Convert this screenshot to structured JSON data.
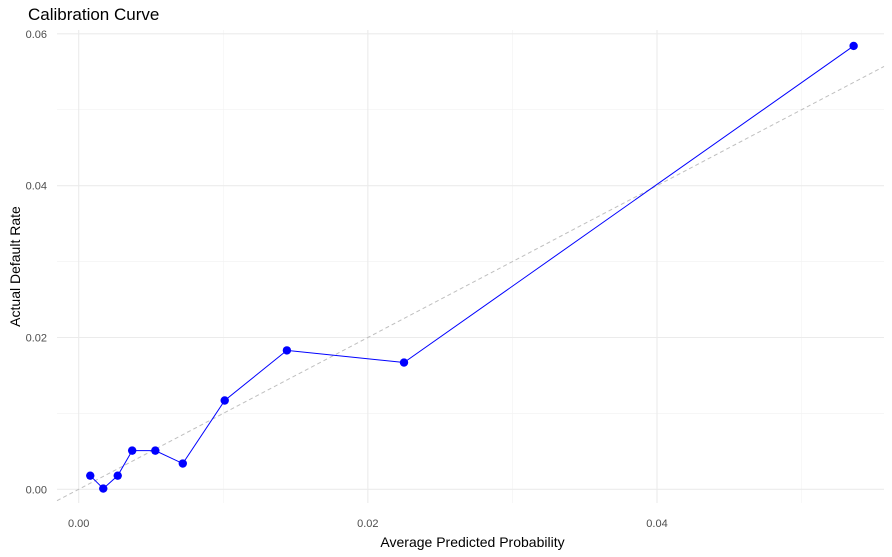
{
  "chart_data": {
    "type": "line",
    "title": "Calibration Curve",
    "xlabel": "Average Predicted Probability",
    "ylabel": "Actual Default Rate",
    "xlim": [
      -0.0015,
      0.0557
    ],
    "ylim": [
      -0.0018,
      0.0605
    ],
    "x_ticks": [
      0.0,
      0.02,
      0.04
    ],
    "x_tick_labels": [
      "0.00",
      "0.02",
      "0.04"
    ],
    "y_ticks": [
      0.0,
      0.02,
      0.04,
      0.06
    ],
    "y_tick_labels": [
      "0.00",
      "0.02",
      "0.04",
      "0.06"
    ],
    "grid": true,
    "reference_line": {
      "slope": 1,
      "intercept": 0,
      "style": "dashed",
      "color": "#bfbfbf"
    },
    "series": [
      {
        "color": "#0000ff",
        "points": [
          {
            "x": 0.0008,
            "y": 0.0018
          },
          {
            "x": 0.0017,
            "y": 0.0001
          },
          {
            "x": 0.0027,
            "y": 0.0018
          },
          {
            "x": 0.0037,
            "y": 0.0051
          },
          {
            "x": 0.0053,
            "y": 0.0051
          },
          {
            "x": 0.0072,
            "y": 0.0034
          },
          {
            "x": 0.0101,
            "y": 0.0117
          },
          {
            "x": 0.0144,
            "y": 0.0183
          },
          {
            "x": 0.0225,
            "y": 0.0167
          },
          {
            "x": 0.0536,
            "y": 0.0584
          }
        ]
      }
    ]
  }
}
